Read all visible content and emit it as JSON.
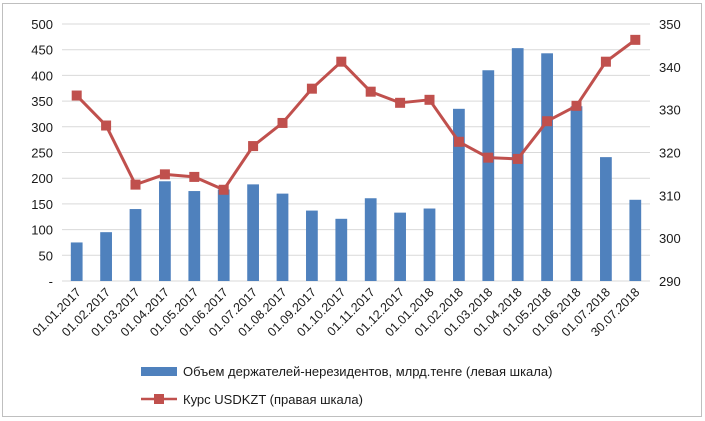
{
  "chart_data": {
    "type": "bar",
    "title": "",
    "categories": [
      "01.01.2017",
      "01.02.2017",
      "01.03.2017",
      "01.04.2017",
      "01.05.2017",
      "01.06.2017",
      "01.07.2017",
      "01.08.2017",
      "01.09.2017",
      "01.10.2017",
      "01.11.2017",
      "01.12.2017",
      "01.01.2018",
      "01.02.2018",
      "01.03.2018",
      "01.04.2018",
      "01.05.2018",
      "01.06.2018",
      "01.07.2018",
      "30.07.2018"
    ],
    "series": [
      {
        "name": "Объем держателей-нерезидентов, млрд.тенге (левая шкала)",
        "type": "bar",
        "axis": "left",
        "color": "#4f81bd",
        "values": [
          75,
          95,
          140,
          194,
          175,
          178,
          188,
          170,
          137,
          121,
          161,
          133,
          141,
          335,
          410,
          453,
          443,
          340,
          241,
          158
        ]
      },
      {
        "name": "Курс USDKZT (правая шкала)",
        "type": "line",
        "axis": "right",
        "color": "#c0504d",
        "values": [
          333.3,
          326.3,
          312.5,
          314.9,
          314.3,
          311.3,
          321.5,
          326.9,
          334.9,
          341.2,
          334.2,
          331.6,
          332.3,
          322.5,
          318.8,
          318.5,
          327.3,
          330.9,
          341.2,
          346.3
        ]
      }
    ],
    "y_left": {
      "min": 0,
      "max": 500,
      "step": 50,
      "ticks": [
        "-",
        "50",
        "100",
        "150",
        "200",
        "250",
        "300",
        "350",
        "400",
        "450",
        "500"
      ]
    },
    "y_right": {
      "min": 290,
      "max": 350,
      "step": 10,
      "ticks": [
        "290",
        "300",
        "310",
        "320",
        "330",
        "340",
        "350"
      ]
    },
    "grid": true,
    "legend": "bottom"
  }
}
